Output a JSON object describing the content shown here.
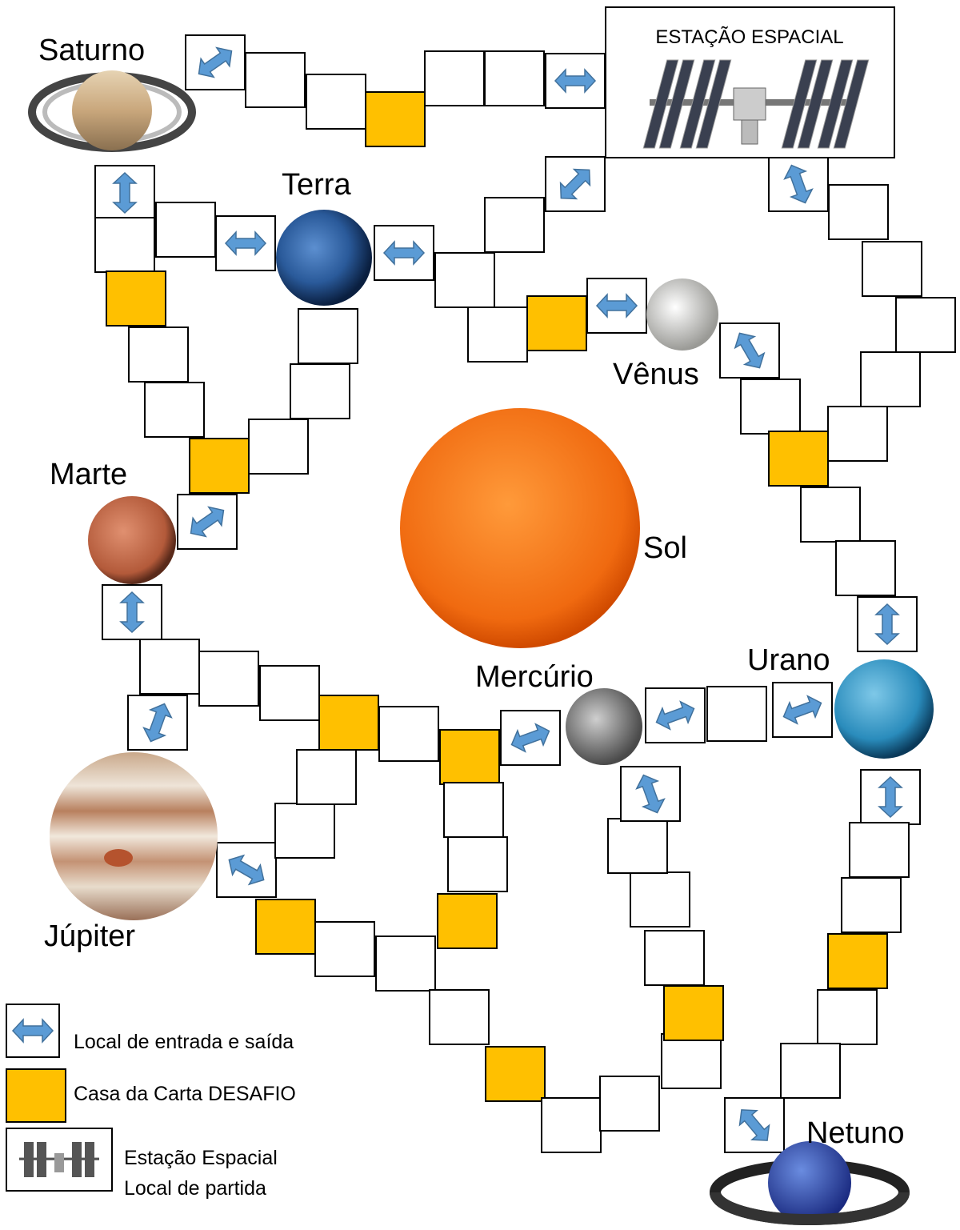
{
  "station": {
    "label": "ESTAÇÃO ESPACIAL"
  },
  "planets": {
    "saturn": "Saturno",
    "earth": "Terra",
    "venus": "Vênus",
    "mars": "Marte",
    "sun": "Sol",
    "uranus": "Urano",
    "mercury": "Mercúrio",
    "jupiter": "Júpiter",
    "neptune": "Netuno"
  },
  "legend": {
    "entry": "Local de entrada e saída",
    "challenge": "Casa da Carta DESAFIO",
    "station": [
      "Estação Espacial",
      "Local de partida"
    ]
  }
}
